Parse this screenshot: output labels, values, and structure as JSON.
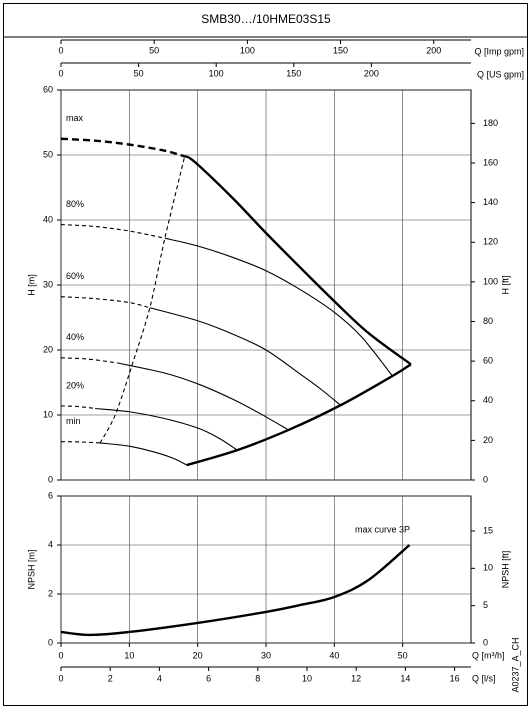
{
  "chart_data": [
    {
      "type": "line",
      "title": "SMB30…/10HME03S15",
      "ylabel": "H [m]",
      "ylim": [
        0,
        60
      ],
      "yticks": [
        0,
        10,
        20,
        30,
        40,
        50,
        60
      ],
      "y2label": "H [ft]",
      "y2lim": [
        0,
        196.85
      ],
      "y2ticks": [
        0,
        20,
        40,
        60,
        80,
        100,
        120,
        140,
        160,
        180
      ],
      "top_axes": [
        {
          "label": "Q [Imp gpm]",
          "lim": [
            0,
            220
          ],
          "ticks": [
            0,
            50,
            100,
            150,
            200
          ]
        },
        {
          "label": "Q [US gpm]",
          "lim": [
            0,
            264.2
          ],
          "ticks": [
            0,
            50,
            100,
            150,
            200
          ]
        }
      ],
      "grid": true,
      "series": [
        {
          "name": "max",
          "color": "#000000",
          "dashed": true,
          "thick": true,
          "x": [
            0,
            5,
            10,
            15,
            18.1
          ],
          "values": [
            52.5,
            52.2,
            51.6,
            50.7,
            49.8
          ]
        },
        {
          "color": "#000000",
          "thick": true,
          "x": [
            18.1,
            19.5,
            25,
            30,
            35,
            40,
            45,
            51.2
          ],
          "values": [
            49.8,
            49,
            43.5,
            38,
            32.7,
            27.5,
            22.6,
            17.8
          ]
        },
        {
          "color": "#000000",
          "thick": true,
          "x": [
            18.4,
            25.8,
            33.3,
            40.9,
            48.5,
            51.2
          ],
          "values": [
            2.3,
            4.6,
            7.7,
            11.5,
            16,
            17.8
          ]
        },
        {
          "name": "80%",
          "color": "#000000",
          "dashed": true,
          "x": [
            0,
            5,
            10,
            15.2
          ],
          "values": [
            39.3,
            39,
            38.3,
            37.2
          ]
        },
        {
          "color": "#000000",
          "x": [
            15.2,
            20,
            25,
            30,
            35,
            40,
            44,
            48.5
          ],
          "values": [
            37.2,
            36,
            34.3,
            32.2,
            29.3,
            25.8,
            22,
            16
          ]
        },
        {
          "name": "60%",
          "color": "#000000",
          "dashed": true,
          "x": [
            0,
            5,
            10,
            13
          ],
          "values": [
            28.2,
            27.9,
            27.3,
            26.5
          ]
        },
        {
          "color": "#000000",
          "x": [
            13,
            20,
            25,
            30,
            35,
            38,
            40.9
          ],
          "values": [
            26.5,
            24.5,
            22.5,
            20,
            16.3,
            14,
            11.5
          ]
        },
        {
          "name": "40%",
          "color": "#000000",
          "dashed": true,
          "x": [
            0,
            4,
            8.3
          ],
          "values": [
            18.8,
            18.6,
            18
          ]
        },
        {
          "color": "#000000",
          "x": [
            8.3,
            15,
            20,
            25,
            29,
            33.3
          ],
          "values": [
            18,
            16.5,
            14.8,
            12.5,
            10.3,
            7.7
          ]
        },
        {
          "name": "20%",
          "color": "#000000",
          "dashed": true,
          "x": [
            0,
            2.5,
            5
          ],
          "values": [
            11.4,
            11.3,
            11
          ]
        },
        {
          "color": "#000000",
          "x": [
            5,
            10,
            15,
            20,
            23,
            25.8
          ],
          "values": [
            11,
            10.5,
            9.5,
            8,
            6.5,
            4.6
          ]
        },
        {
          "name": "min",
          "color": "#000000",
          "dashed": true,
          "x": [
            0,
            3,
            5.7
          ],
          "values": [
            5.9,
            5.85,
            5.7
          ]
        },
        {
          "color": "#000000",
          "x": [
            5.7,
            10,
            14,
            16.5,
            18.4
          ],
          "values": [
            5.7,
            5.2,
            4.2,
            3.3,
            2.3
          ]
        },
        {
          "color": "#000000",
          "dashed": true,
          "x": [
            5.7,
            7,
            8.3,
            10.5,
            13,
            15.2,
            18.1
          ],
          "values": [
            5.7,
            8,
            11,
            18,
            26.5,
            37.2,
            49.8
          ]
        }
      ]
    },
    {
      "type": "line",
      "xlabel": "Q [m³/h]",
      "xlim": [
        0,
        60
      ],
      "xticks": [
        0,
        10,
        20,
        30,
        40,
        50
      ],
      "x2label": "Q [l/s]",
      "x2lim": [
        0,
        16.667
      ],
      "x2ticks": [
        0,
        2,
        4,
        6,
        8,
        10,
        12,
        14,
        16
      ],
      "ylabel": "NPSH [m]",
      "ylim": [
        0,
        6
      ],
      "yticks": [
        0,
        2,
        4,
        6
      ],
      "y2label": "NPSH [ft]",
      "y2lim": [
        0,
        19.685
      ],
      "y2ticks": [
        0,
        5,
        10,
        15
      ],
      "grid": true,
      "annotation": "max curve 3P",
      "code": "A0237_A_CH",
      "series": [
        {
          "color": "#000000",
          "thick": true,
          "x": [
            0,
            4.2,
            10,
            20,
            30,
            35,
            40,
            45,
            51
          ],
          "values": [
            0.45,
            0.33,
            0.45,
            0.82,
            1.27,
            1.55,
            1.88,
            2.57,
            4
          ]
        }
      ]
    }
  ]
}
